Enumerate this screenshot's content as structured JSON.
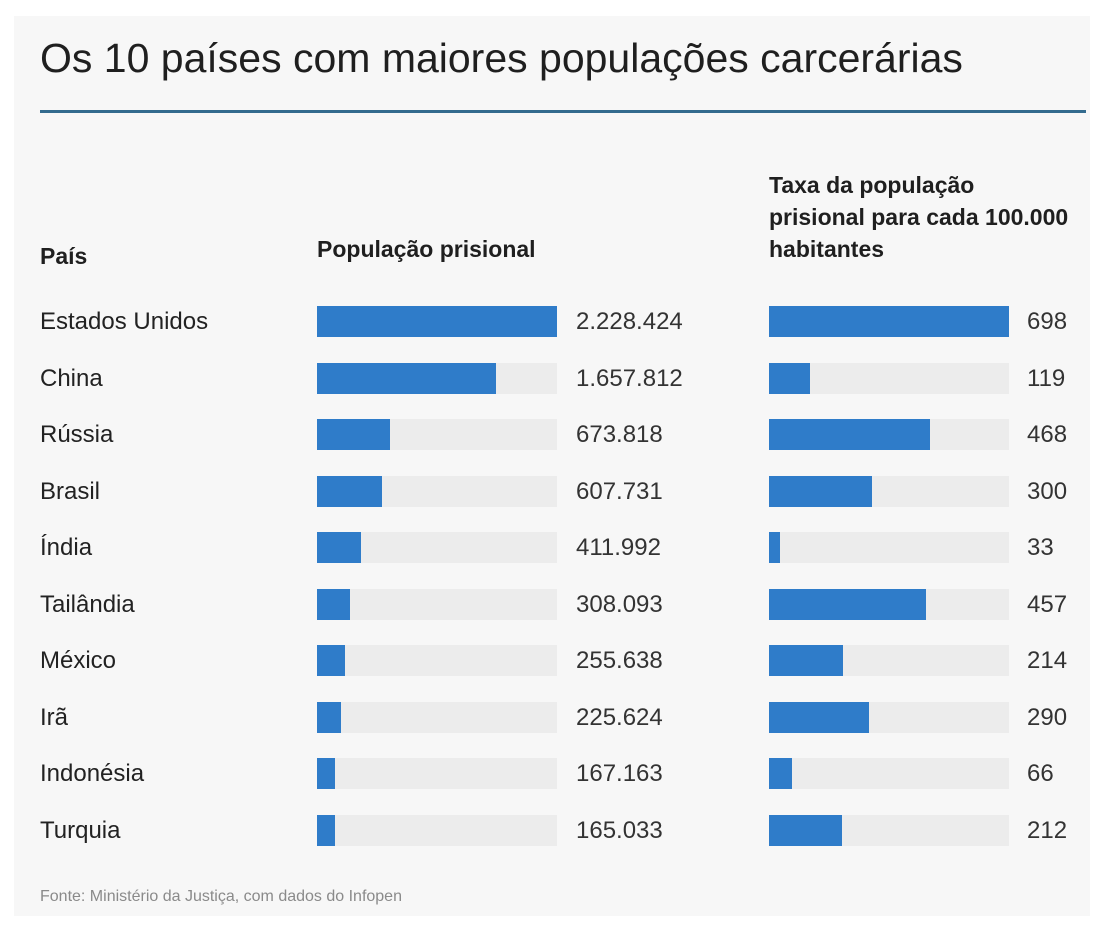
{
  "title": "Os 10 países com maiores populações carcerárias",
  "headers": {
    "country": "País",
    "population": "População prisional",
    "rate": "Taxa da população prisional para cada 100.000 habitantes"
  },
  "source": "Fonte: Ministério da Justiça, com dados do Infopen",
  "colors": {
    "bar": "#2f7cc9",
    "track": "#ececec",
    "rule": "#336b8e",
    "background": "#f7f7f7"
  },
  "chart_data": {
    "type": "bar",
    "title": "Os 10 países com maiores populações carcerárias",
    "categories": [
      "Estados Unidos",
      "China",
      "Rússia",
      "Brasil",
      "Índia",
      "Tailândia",
      "México",
      "Irã",
      "Indonésia",
      "Turquia"
    ],
    "series": [
      {
        "name": "População prisional",
        "values": [
          2228424,
          1657812,
          673818,
          607731,
          411992,
          308093,
          255638,
          225624,
          167163,
          165033
        ],
        "labels": [
          "2.228.424",
          "1.657.812",
          "673.818",
          "607.731",
          "411.992",
          "308.093",
          "255.638",
          "225.624",
          "167.163",
          "165.033"
        ]
      },
      {
        "name": "Taxa da população prisional para cada 100.000 habitantes",
        "values": [
          698,
          119,
          468,
          300,
          33,
          457,
          214,
          290,
          66,
          212
        ],
        "labels": [
          "698",
          "119",
          "468",
          "300",
          "33",
          "457",
          "214",
          "290",
          "66",
          "212"
        ]
      }
    ],
    "orientation": "horizontal",
    "grid": false,
    "legend": "none"
  }
}
